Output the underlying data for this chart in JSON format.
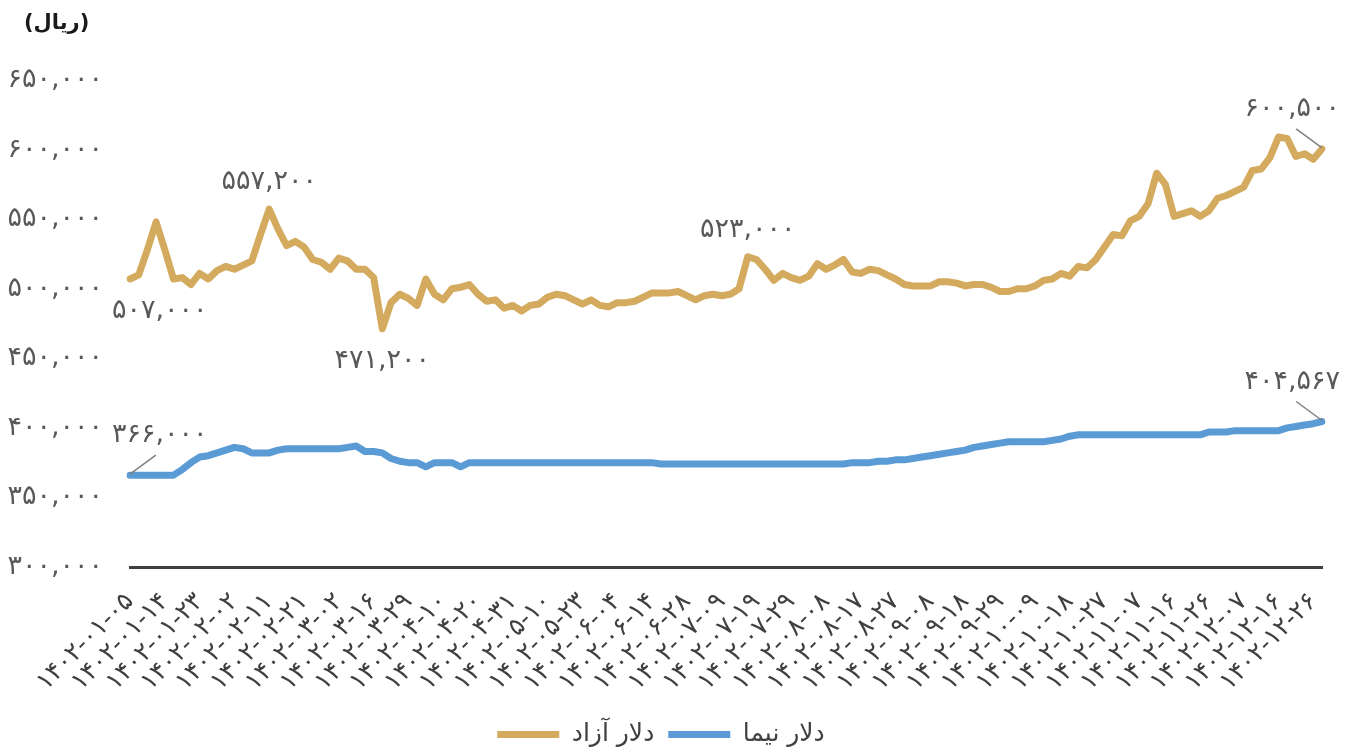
{
  "chart_data": {
    "type": "line",
    "ylabel": "(ریال)",
    "legend": "bottom",
    "ylim": [
      300000,
      650000
    ],
    "yticks": [
      {
        "value": 300000,
        "label": "۳۰۰,۰۰۰"
      },
      {
        "value": 350000,
        "label": "۳۵۰,۰۰۰"
      },
      {
        "value": 400000,
        "label": "۴۰۰,۰۰۰"
      },
      {
        "value": 450000,
        "label": "۴۵۰,۰۰۰"
      },
      {
        "value": 500000,
        "label": "۵۰۰,۰۰۰"
      },
      {
        "value": 550000,
        "label": "۵۵۰,۰۰۰"
      },
      {
        "value": 600000,
        "label": "۶۰۰,۰۰۰"
      },
      {
        "value": 650000,
        "label": "۶۵۰,۰۰۰"
      }
    ],
    "categories": [
      "۱۴۰۲-۰۱-۰۵",
      null,
      null,
      null,
      "۱۴۰۲-۰۱-۱۴",
      null,
      null,
      null,
      "۱۴۰۲-۰۱-۲۳",
      null,
      null,
      null,
      "۱۴۰۲-۰۲-۰۲",
      null,
      null,
      null,
      "۱۴۰۲-۰۲-۱۱",
      null,
      null,
      null,
      "۱۴۰۲-۰۲-۲۱",
      null,
      null,
      null,
      "۱۴۰۲-۰۳-۰۲",
      null,
      null,
      null,
      "۱۴۰۲-۰۳-۱۶",
      null,
      null,
      null,
      "۱۴۰۲-۰۳-۲۹",
      null,
      null,
      null,
      "۱۴۰۲-۰۴-۱۰",
      null,
      null,
      null,
      "۱۴۰۲-۰۴-۲۰",
      null,
      null,
      null,
      "۱۴۰۲-۰۴-۳۱",
      null,
      null,
      null,
      "۱۴۰۲-۰۵-۱۰",
      null,
      null,
      null,
      "۱۴۰۲-۰۵-۲۳",
      null,
      null,
      null,
      "۱۴۰۲-۰۶-۰۴",
      null,
      null,
      null,
      "۱۴۰۲-۰۶-۱۴",
      null,
      null,
      null,
      "۱۴۰۲-۰۶-۲۸",
      null,
      null,
      null,
      "۱۴۰۲-۰۷-۰۹",
      null,
      null,
      null,
      "۱۴۰۲-۰۷-۱۹",
      null,
      null,
      null,
      "۱۴۰۲-۰۷-۲۹",
      null,
      null,
      null,
      "۱۴۰۲-۰۸-۰۸",
      null,
      null,
      null,
      "۱۴۰۲-۰۸-۱۷",
      null,
      null,
      null,
      "۱۴۰۲-۰۸-۲۷",
      null,
      null,
      null,
      "۱۴۰۲-۰۹-۰۸",
      null,
      null,
      null,
      "۱۴۰۲-۰۹-۱۸",
      null,
      null,
      null,
      "۱۴۰۲-۰۹-۲۹",
      null,
      null,
      null,
      "۱۴۰۲-۱۰-۰۹",
      null,
      null,
      null,
      "۱۴۰۲-۱۰-۱۸",
      null,
      null,
      null,
      "۱۴۰۲-۱۰-۲۷",
      null,
      null,
      null,
      "۱۴۰۲-۱۱-۰۷",
      null,
      null,
      null,
      "۱۴۰۲-۱۱-۱۶",
      null,
      null,
      null,
      "۱۴۰۲-۱۱-۲۶",
      null,
      null,
      null,
      "۱۴۰۲-۱۲-۰۷",
      null,
      null,
      null,
      "۱۴۰۲-۱۲-۱۶",
      null,
      null,
      null,
      "۱۴۰۲-۱۲-۲۶",
      null
    ],
    "series": [
      {
        "name": "دلار آزاد",
        "color": "#d4aa5e",
        "values": [
          507000,
          510000,
          528000,
          548000,
          528000,
          507000,
          508000,
          503000,
          511000,
          507000,
          513000,
          516000,
          514000,
          517000,
          520000,
          539000,
          557200,
          543000,
          531000,
          534000,
          530000,
          521000,
          519000,
          514000,
          522000,
          520000,
          514000,
          514000,
          508000,
          471200,
          490000,
          496000,
          493000,
          488000,
          507000,
          496000,
          492000,
          500000,
          501000,
          503000,
          496000,
          491000,
          492000,
          486000,
          488000,
          484000,
          488000,
          489000,
          494000,
          496000,
          495000,
          492000,
          489000,
          492000,
          488000,
          487000,
          490000,
          490000,
          491000,
          494000,
          497000,
          497000,
          497000,
          498000,
          495000,
          492000,
          495000,
          496000,
          495000,
          496000,
          500000,
          523000,
          521000,
          514000,
          506000,
          511000,
          508000,
          506000,
          509000,
          518000,
          514000,
          517000,
          521000,
          512000,
          511000,
          514000,
          513000,
          510000,
          507000,
          503000,
          502000,
          502000,
          502000,
          505000,
          505000,
          504000,
          502000,
          503000,
          503000,
          501000,
          498000,
          498000,
          500000,
          500000,
          502000,
          506000,
          507000,
          511000,
          509000,
          516000,
          515000,
          521000,
          530000,
          539000,
          538000,
          549000,
          552000,
          561000,
          583000,
          575000,
          552000,
          554000,
          556000,
          552000,
          556000,
          565000,
          567000,
          570000,
          573000,
          585000,
          586000,
          594000,
          609000,
          608000,
          595000,
          597000,
          593000,
          600500
        ],
        "value_labels": [
          "۵۰۷,۰۰۰",
          null,
          null,
          null,
          null,
          null,
          null,
          null,
          null,
          null,
          null,
          null,
          null,
          null,
          null,
          null,
          "۵۵۷,۲۰۰",
          null,
          null,
          null,
          null,
          null,
          null,
          null,
          null,
          null,
          null,
          null,
          null,
          "۴۷۱,۲۰۰",
          null,
          null,
          null,
          null,
          null,
          null,
          null,
          null,
          null,
          null,
          null,
          null,
          null,
          null,
          null,
          null,
          null,
          null,
          null,
          null,
          null,
          null,
          null,
          null,
          null,
          null,
          null,
          null,
          null,
          null,
          null,
          null,
          null,
          null,
          null,
          null,
          null,
          null,
          null,
          null,
          null,
          "۵۲۳,۰۰۰",
          null,
          null,
          null,
          null,
          null,
          null,
          null,
          null,
          null,
          null,
          null,
          null,
          null,
          null,
          null,
          null,
          null,
          null,
          null,
          null,
          null,
          null,
          null,
          null,
          null,
          null,
          null,
          null,
          null,
          null,
          null,
          null,
          null,
          null,
          null,
          null,
          null,
          null,
          null,
          null,
          null,
          null,
          null,
          null,
          null,
          null,
          null,
          null,
          null,
          null,
          null,
          null,
          null,
          null,
          null,
          null,
          null,
          null,
          null,
          null,
          null,
          null,
          null,
          null,
          null,
          "۶۰۰,۵۰۰"
        ]
      },
      {
        "name": "دلار نیما",
        "color": "#5b9bd5",
        "values": [
          366000,
          366000,
          366000,
          366000,
          366000,
          366000,
          370000,
          375000,
          379000,
          380000,
          382000,
          384000,
          386000,
          385000,
          382000,
          382000,
          382000,
          384000,
          385000,
          385000,
          385000,
          385000,
          385000,
          385000,
          385000,
          386000,
          387000,
          383000,
          383000,
          382000,
          378000,
          376000,
          375000,
          375000,
          372000,
          375000,
          375000,
          375000,
          372000,
          375000,
          375000,
          375000,
          375000,
          375000,
          375000,
          375000,
          375000,
          375000,
          375000,
          375000,
          375000,
          375000,
          375000,
          375000,
          375000,
          375000,
          375000,
          375000,
          375000,
          375000,
          375000,
          374000,
          374000,
          374000,
          374000,
          374000,
          374000,
          374000,
          374000,
          374000,
          374000,
          374000,
          374000,
          374000,
          374000,
          374000,
          374000,
          374000,
          374000,
          374000,
          374000,
          374000,
          374000,
          375000,
          375000,
          375000,
          376000,
          376000,
          377000,
          377000,
          378000,
          379000,
          380000,
          381000,
          382000,
          383000,
          384000,
          386000,
          387000,
          388000,
          389000,
          390000,
          390000,
          390000,
          390000,
          390000,
          391000,
          392000,
          394000,
          395000,
          395000,
          395000,
          395000,
          395000,
          395000,
          395000,
          395000,
          395000,
          395000,
          395000,
          395000,
          395000,
          395000,
          395000,
          397000,
          397000,
          397000,
          398000,
          398000,
          398000,
          398000,
          398000,
          398000,
          400000,
          401000,
          402000,
          403000,
          404567
        ],
        "value_labels": [
          "۳۶۶,۰۰۰",
          null,
          null,
          null,
          null,
          null,
          null,
          null,
          null,
          null,
          null,
          null,
          null,
          null,
          null,
          null,
          null,
          null,
          null,
          null,
          null,
          null,
          null,
          null,
          null,
          null,
          null,
          null,
          null,
          null,
          null,
          null,
          null,
          null,
          null,
          null,
          null,
          null,
          null,
          null,
          null,
          null,
          null,
          null,
          null,
          null,
          null,
          null,
          null,
          null,
          null,
          null,
          null,
          null,
          null,
          null,
          null,
          null,
          null,
          null,
          null,
          null,
          null,
          null,
          null,
          null,
          null,
          null,
          null,
          null,
          null,
          null,
          null,
          null,
          null,
          null,
          null,
          null,
          null,
          null,
          null,
          null,
          null,
          null,
          null,
          null,
          null,
          null,
          null,
          null,
          null,
          null,
          null,
          null,
          null,
          null,
          null,
          null,
          null,
          null,
          null,
          null,
          null,
          null,
          null,
          null,
          null,
          null,
          null,
          null,
          null,
          null,
          null,
          null,
          null,
          null,
          null,
          null,
          null,
          null,
          null,
          null,
          null,
          null,
          null,
          null,
          null,
          null,
          null,
          null,
          null,
          null,
          null,
          null,
          null,
          null,
          null,
          "۴۰۴,۵۶۷"
        ]
      }
    ]
  }
}
